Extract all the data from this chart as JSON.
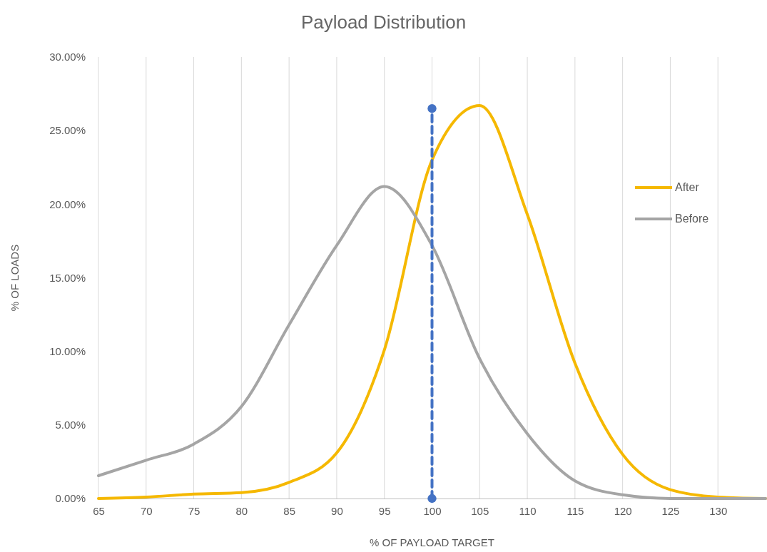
{
  "chart_data": {
    "type": "line",
    "title": "Payload Distribution",
    "xlabel": "% OF PAYLOAD TARGET",
    "ylabel": "% OF LOADS",
    "x": [
      65,
      70,
      75,
      80,
      85,
      90,
      95,
      100,
      105,
      110,
      115,
      120,
      125,
      130,
      135
    ],
    "series": [
      {
        "name": "After",
        "color": "#f5b800",
        "values": [
          0,
          0.1,
          0.3,
          0.4,
          1.1,
          3.1,
          10.1,
          23,
          26.7,
          19.3,
          9.2,
          3.0,
          0.6,
          0.1,
          0
        ]
      },
      {
        "name": "Before",
        "color": "#a5a5a5",
        "values": [
          1.55,
          2.6,
          3.7,
          6.25,
          11.8,
          17.2,
          21.2,
          17.2,
          9.5,
          4.4,
          1.2,
          0.25,
          0,
          0,
          0
        ]
      },
      {
        "color": "#4472c4",
        "x": [
          100,
          100
        ],
        "values": [
          0,
          26.5
        ],
        "marker": "circle",
        "line_style": "dashed"
      }
    ],
    "xlim": [
      65,
      135
    ],
    "xticks": [
      65,
      70,
      75,
      80,
      85,
      90,
      95,
      100,
      105,
      110,
      115,
      120,
      125,
      130
    ],
    "ylim": [
      0,
      30
    ],
    "yticks": [
      {
        "value": 0,
        "label": "0.00%"
      },
      {
        "value": 5,
        "label": "5.00%"
      },
      {
        "value": 10,
        "label": "10.00%"
      },
      {
        "value": 15,
        "label": "15.00%"
      },
      {
        "value": 20,
        "label": "20.00%"
      },
      {
        "value": 25,
        "label": "25.00%"
      },
      {
        "value": 30,
        "label": "30.00%"
      }
    ],
    "grid": "x",
    "legend": "right",
    "marker": "none",
    "line_style": "solid"
  }
}
